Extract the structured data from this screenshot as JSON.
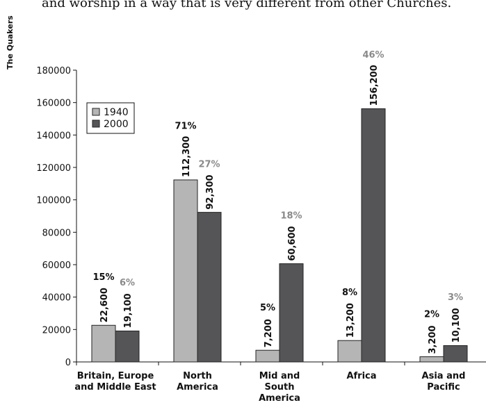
{
  "page": {
    "intro_text": "and worship in a way that is very different from other Churches.",
    "sidebar_label": "The Quakers"
  },
  "chart_data": {
    "type": "bar",
    "categories": [
      [
        "Britain, Europe",
        "and Middle East"
      ],
      [
        "North",
        "America"
      ],
      [
        "Mid and",
        "South",
        "America"
      ],
      [
        "Africa"
      ],
      [
        "Asia and",
        "Pacific"
      ]
    ],
    "series": [
      {
        "name": "1940",
        "color": "#b5b5b5",
        "values": [
          22600,
          112300,
          7200,
          13200,
          3200
        ],
        "labels": [
          "22,600",
          "112,300",
          "7,200",
          "13,200",
          "3,200"
        ],
        "percents": [
          "15%",
          "71%",
          "5%",
          "8%",
          "2%"
        ],
        "percent_color": "#111111"
      },
      {
        "name": "2000",
        "color": "#555558",
        "values": [
          19100,
          92300,
          60600,
          156200,
          10100
        ],
        "labels": [
          "19,100",
          "92,300",
          "60,600",
          "156,200",
          "10,100"
        ],
        "percents": [
          "6%",
          "27%",
          "18%",
          "46%",
          "3%"
        ],
        "percent_color": "#8a8a8a"
      }
    ],
    "ylim": [
      0,
      180000
    ],
    "yticks": [
      0,
      20000,
      40000,
      60000,
      80000,
      100000,
      120000,
      140000,
      160000,
      180000
    ],
    "ytick_labels": [
      "0",
      "20000",
      "40000",
      "60000",
      "80000",
      "100000",
      "120000",
      "140000",
      "160000",
      "180000"
    ],
    "legend": {
      "position": "top-left",
      "entries": [
        "1940",
        "2000"
      ]
    },
    "grid": false
  }
}
